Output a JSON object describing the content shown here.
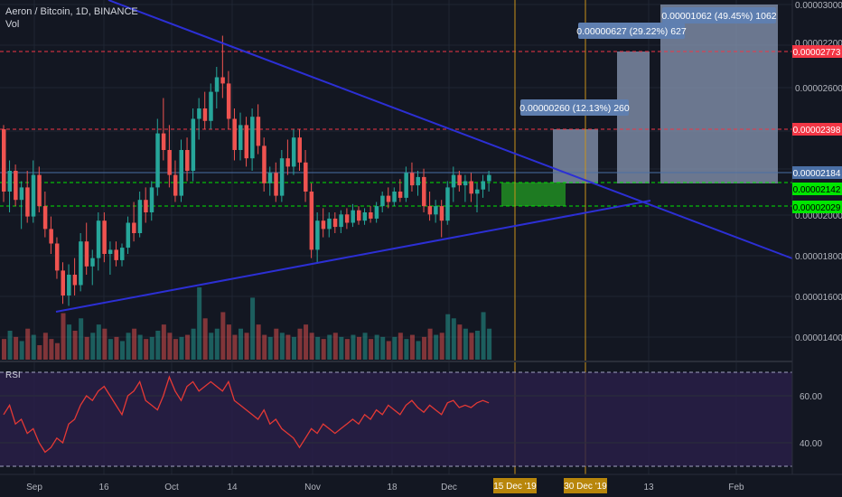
{
  "header": {
    "symbol_title": "Aeron / Bitcoin, 1D, BINANCE",
    "volume_label": "Vol"
  },
  "rsi": {
    "label": "RSI",
    "levels": [
      "60.00",
      "40.00"
    ]
  },
  "price_axis": {
    "ticks": [
      "0.00003000",
      "0.00002600",
      "0.00002000",
      "0.00001800",
      "0.00001600",
      "0.00001400"
    ],
    "partially_hidden_tick": "0.00002200",
    "badges": [
      {
        "name": "resistance-red-top",
        "value": "0.00002773",
        "color": "#f23645",
        "text_color": "#ffffff"
      },
      {
        "name": "resistance-red-mid",
        "value": "0.00002398",
        "color": "#f23645",
        "text_color": "#ffffff"
      },
      {
        "name": "last-price",
        "value": "0.00002184",
        "color": "#4a6fa5",
        "text_color": "#ffffff"
      },
      {
        "name": "support-green-top",
        "value": "0.00002142",
        "color": "#00e600",
        "text_color": "#000000"
      },
      {
        "name": "support-green-bottom",
        "value": "0.00002029",
        "color": "#00e600",
        "text_color": "#000000"
      }
    ]
  },
  "time_axis": {
    "ticks": [
      "Sep",
      "16",
      "Oct",
      "14",
      "Nov",
      "18",
      "Dec",
      "13",
      "Feb"
    ],
    "highlighted": [
      "15 Dec '19",
      "30 Dec '19"
    ]
  },
  "targets": [
    {
      "text": "0.00000260 (12.13%) 260"
    },
    {
      "text": "0.00000627 (29.22%) 627"
    },
    {
      "text": "0.00001062 (49.45%) 1062"
    }
  ],
  "colors": {
    "up": "#26a69a",
    "down": "#ef5350",
    "trendline": "#2c2fd4",
    "rsi_line": "#e53935",
    "rsi_bg": "#2a1f4a",
    "target_box": "#8a98b4",
    "entry_box": "#1e7b22",
    "orange_line": "#c8921a"
  },
  "chart_data": {
    "type": "candlestick",
    "title": "Aeron / Bitcoin, 1D, BINANCE",
    "ylim": [
      1.3e-05,
      3e-05
    ],
    "horizontal_levels": [
      2.773e-05,
      2.398e-05,
      2.184e-05,
      2.142e-05,
      2.029e-05
    ],
    "candles_ohlc": [
      [
        2.4e-05,
        2.42e-05,
        2.05e-05,
        2.1e-05
      ],
      [
        2.1e-05,
        2.25e-05,
        2e-05,
        2.2e-05
      ],
      [
        2.2e-05,
        2.23e-05,
        2.03e-05,
        2.06e-05
      ],
      [
        2.06e-05,
        2.15e-05,
        1.92e-05,
        2.12e-05
      ],
      [
        2.12e-05,
        2.2e-05,
        1.95e-05,
        1.98e-05
      ],
      [
        1.98e-05,
        2.25e-05,
        1.95e-05,
        2.18e-05
      ],
      [
        2.18e-05,
        2.22e-05,
        2e-05,
        2.03e-05
      ],
      [
        2.03e-05,
        2.1e-05,
        1.88e-05,
        1.92e-05
      ],
      [
        1.92e-05,
        1.98e-05,
        1.8e-05,
        1.85e-05
      ],
      [
        1.85e-05,
        1.88e-05,
        1.68e-05,
        1.72e-05
      ],
      [
        1.72e-05,
        1.76e-05,
        1.56e-05,
        1.6e-05
      ],
      [
        1.6e-05,
        1.75e-05,
        1.55e-05,
        1.7e-05
      ],
      [
        1.7e-05,
        1.78e-05,
        1.6e-05,
        1.65e-05
      ],
      [
        1.65e-05,
        1.9e-05,
        1.62e-05,
        1.86e-05
      ],
      [
        1.86e-05,
        1.95e-05,
        1.7e-05,
        1.74e-05
      ],
      [
        1.74e-05,
        1.82e-05,
        1.65e-05,
        1.78e-05
      ],
      [
        1.78e-05,
        2e-05,
        1.72e-05,
        1.96e-05
      ],
      [
        1.96e-05,
        2e-05,
        1.76e-05,
        1.8e-05
      ],
      [
        1.8e-05,
        1.86e-05,
        1.7e-05,
        1.82e-05
      ],
      [
        1.82e-05,
        1.86e-05,
        1.74e-05,
        1.77e-05
      ],
      [
        1.77e-05,
        1.85e-05,
        1.74e-05,
        1.83e-05
      ],
      [
        1.83e-05,
        1.98e-05,
        1.8e-05,
        1.95e-05
      ],
      [
        1.95e-05,
        2.05e-05,
        1.86e-05,
        1.9e-05
      ],
      [
        1.9e-05,
        2.1e-05,
        1.88e-05,
        2.06e-05
      ],
      [
        2.06e-05,
        2.12e-05,
        1.95e-05,
        2e-05
      ],
      [
        2e-05,
        2.15e-05,
        1.96e-05,
        2.12e-05
      ],
      [
        2.12e-05,
        2.45e-05,
        2.08e-05,
        2.38e-05
      ],
      [
        2.38e-05,
        2.55e-05,
        2.25e-05,
        2.3e-05
      ],
      [
        2.3e-05,
        2.42e-05,
        2.12e-05,
        2.18e-05
      ],
      [
        2.18e-05,
        2.25e-05,
        2.05e-05,
        2.08e-05
      ],
      [
        2.08e-05,
        2.35e-05,
        2.05e-05,
        2.3e-05
      ],
      [
        2.3e-05,
        2.36e-05,
        2.15e-05,
        2.2e-05
      ],
      [
        2.2e-05,
        2.5e-05,
        2.15e-05,
        2.45e-05
      ],
      [
        2.45e-05,
        2.55e-05,
        2.35e-05,
        2.5e-05
      ],
      [
        2.5e-05,
        2.58e-05,
        2.4e-05,
        2.44e-05
      ],
      [
        2.44e-05,
        2.62e-05,
        2.4e-05,
        2.58e-05
      ],
      [
        2.58e-05,
        2.7e-05,
        2.5e-05,
        2.65e-05
      ],
      [
        2.65e-05,
        2.85e-05,
        2.55e-05,
        2.62e-05
      ],
      [
        2.62e-05,
        2.68e-05,
        2.4e-05,
        2.45e-05
      ],
      [
        2.45e-05,
        2.5e-05,
        2.25e-05,
        2.3e-05
      ],
      [
        2.3e-05,
        2.48e-05,
        2.25e-05,
        2.42e-05
      ],
      [
        2.42e-05,
        2.46e-05,
        2.22e-05,
        2.26e-05
      ],
      [
        2.26e-05,
        2.5e-05,
        2.2e-05,
        2.46e-05
      ],
      [
        2.46e-05,
        2.52e-05,
        2.28e-05,
        2.32e-05
      ],
      [
        2.32e-05,
        2.36e-05,
        2.1e-05,
        2.14e-05
      ],
      [
        2.14e-05,
        2.22e-05,
        2.08e-05,
        2.19e-05
      ],
      [
        2.19e-05,
        2.24e-05,
        2.05e-05,
        2.08e-05
      ],
      [
        2.08e-05,
        2.3e-05,
        2.05e-05,
        2.26e-05
      ],
      [
        2.26e-05,
        2.35e-05,
        2.18e-05,
        2.22e-05
      ],
      [
        2.22e-05,
        2.4e-05,
        2.18e-05,
        2.36e-05
      ],
      [
        2.36e-05,
        2.4e-05,
        2.2e-05,
        2.24e-05
      ],
      [
        2.24e-05,
        2.3e-05,
        2.05e-05,
        2.1e-05
      ],
      [
        2.1e-05,
        2.14e-05,
        1.78e-05,
        1.82e-05
      ],
      [
        1.82e-05,
        2e-05,
        1.76e-05,
        1.96e-05
      ],
      [
        1.96e-05,
        2.02e-05,
        1.88e-05,
        1.92e-05
      ],
      [
        1.92e-05,
        2e-05,
        1.88e-05,
        1.97e-05
      ],
      [
        1.97e-05,
        2e-05,
        1.9e-05,
        1.93e-05
      ],
      [
        1.93e-05,
        2.01e-05,
        1.9e-05,
        1.99e-05
      ],
      [
        1.99e-05,
        2.02e-05,
        1.92e-05,
        1.95e-05
      ],
      [
        1.95e-05,
        2.04e-05,
        1.93e-05,
        2.01e-05
      ],
      [
        2.01e-05,
        2.03e-05,
        1.94e-05,
        1.96e-05
      ],
      [
        1.96e-05,
        2.02e-05,
        1.94e-05,
        2e-05
      ],
      [
        2e-05,
        2.03e-05,
        1.95e-05,
        1.97e-05
      ],
      [
        1.97e-05,
        2.05e-05,
        1.95e-05,
        2.03e-05
      ],
      [
        2.03e-05,
        2.1e-05,
        2e-05,
        2.08e-05
      ],
      [
        2.08e-05,
        2.12e-05,
        2.02e-05,
        2.05e-05
      ],
      [
        2.05e-05,
        2.12e-05,
        2.03e-05,
        2.1e-05
      ],
      [
        2.1e-05,
        2.16e-05,
        2.05e-05,
        2.07e-05
      ],
      [
        2.07e-05,
        2.22e-05,
        2.05e-05,
        2.19e-05
      ],
      [
        2.19e-05,
        2.24e-05,
        2.1e-05,
        2.13e-05
      ],
      [
        2.13e-05,
        2.2e-05,
        2.08e-05,
        2.17e-05
      ],
      [
        2.17e-05,
        2.21e-05,
        2e-05,
        2.03e-05
      ],
      [
        2.03e-05,
        2.1e-05,
        1.96e-05,
        1.99e-05
      ],
      [
        1.99e-05,
        2.06e-05,
        1.95e-05,
        2.03e-05
      ],
      [
        2.03e-05,
        2.06e-05,
        1.88e-05,
        1.96e-05
      ],
      [
        1.96e-05,
        2.15e-05,
        1.94e-05,
        2.12e-05
      ],
      [
        2.12e-05,
        2.22e-05,
        2.05e-05,
        2.18e-05
      ],
      [
        2.18e-05,
        2.2e-05,
        2.1e-05,
        2.13e-05
      ],
      [
        2.13e-05,
        2.18e-05,
        2.05e-05,
        2.15e-05
      ],
      [
        2.15e-05,
        2.19e-05,
        2.05e-05,
        2.09e-05
      ],
      [
        2.09e-05,
        2.14e-05,
        2e-05,
        2.11e-05
      ],
      [
        2.11e-05,
        2.18e-05,
        2.07e-05,
        2.15e-05
      ],
      [
        2.15e-05,
        2.2e-05,
        2.1e-05,
        2.18e-05
      ]
    ],
    "volume": [
      20,
      28,
      22,
      18,
      30,
      24,
      14,
      26,
      20,
      16,
      45,
      34,
      28,
      40,
      22,
      26,
      34,
      30,
      20,
      22,
      18,
      26,
      30,
      24,
      20,
      22,
      28,
      34,
      26,
      20,
      22,
      24,
      30,
      70,
      40,
      26,
      30,
      46,
      34,
      24,
      30,
      26,
      60,
      34,
      24,
      22,
      30,
      26,
      24,
      22,
      30,
      34,
      26,
      22,
      20,
      24,
      26,
      22,
      20,
      24,
      22,
      26,
      20,
      24,
      22,
      18,
      22,
      26,
      20,
      24,
      18,
      22,
      30,
      24,
      26,
      44,
      40,
      34,
      30,
      26,
      28,
      46,
      30
    ],
    "rsi": [
      52,
      56,
      48,
      50,
      44,
      46,
      40,
      36,
      38,
      42,
      40,
      48,
      50,
      56,
      60,
      58,
      62,
      64,
      60,
      56,
      52,
      60,
      62,
      66,
      58,
      56,
      54,
      60,
      68,
      62,
      58,
      64,
      66,
      62,
      64,
      66,
      64,
      62,
      66,
      58,
      56,
      54,
      52,
      50,
      54,
      48,
      50,
      46,
      44,
      42,
      38,
      42,
      46,
      44,
      48,
      46,
      44,
      46,
      48,
      50,
      48,
      52,
      50,
      54,
      52,
      56,
      54,
      52,
      56,
      58,
      55,
      53,
      56,
      54,
      52,
      57,
      58,
      55,
      56,
      55,
      57,
      58,
      57
    ]
  }
}
